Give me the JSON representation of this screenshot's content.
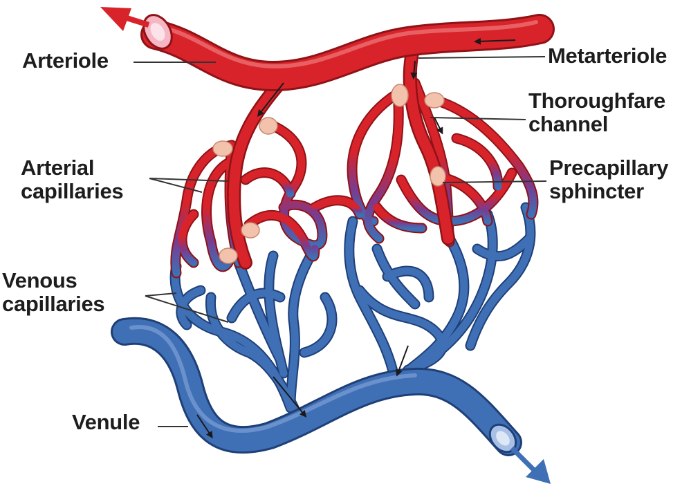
{
  "labels": {
    "arteriole": "Arteriole",
    "metarteriole": "Metarteriole",
    "thoroughfare_1": "Thoroughfare",
    "thoroughfare_2": "channel",
    "arterial_caps_1": "Arterial",
    "arterial_caps_2": "capillaries",
    "precap_1": "Precapillary",
    "precap_2": "sphincter",
    "venous_caps_1": "Venous",
    "venous_caps_2": "capillaries",
    "venule": "Venule"
  },
  "colors": {
    "artery": "#d8232a",
    "artery_dark": "#8f1216",
    "vein": "#3f6fb5",
    "vein_dark": "#1f3f77",
    "sphincter": "#f2c2ad",
    "leader": "#333333",
    "text": "#1d1d1d"
  }
}
